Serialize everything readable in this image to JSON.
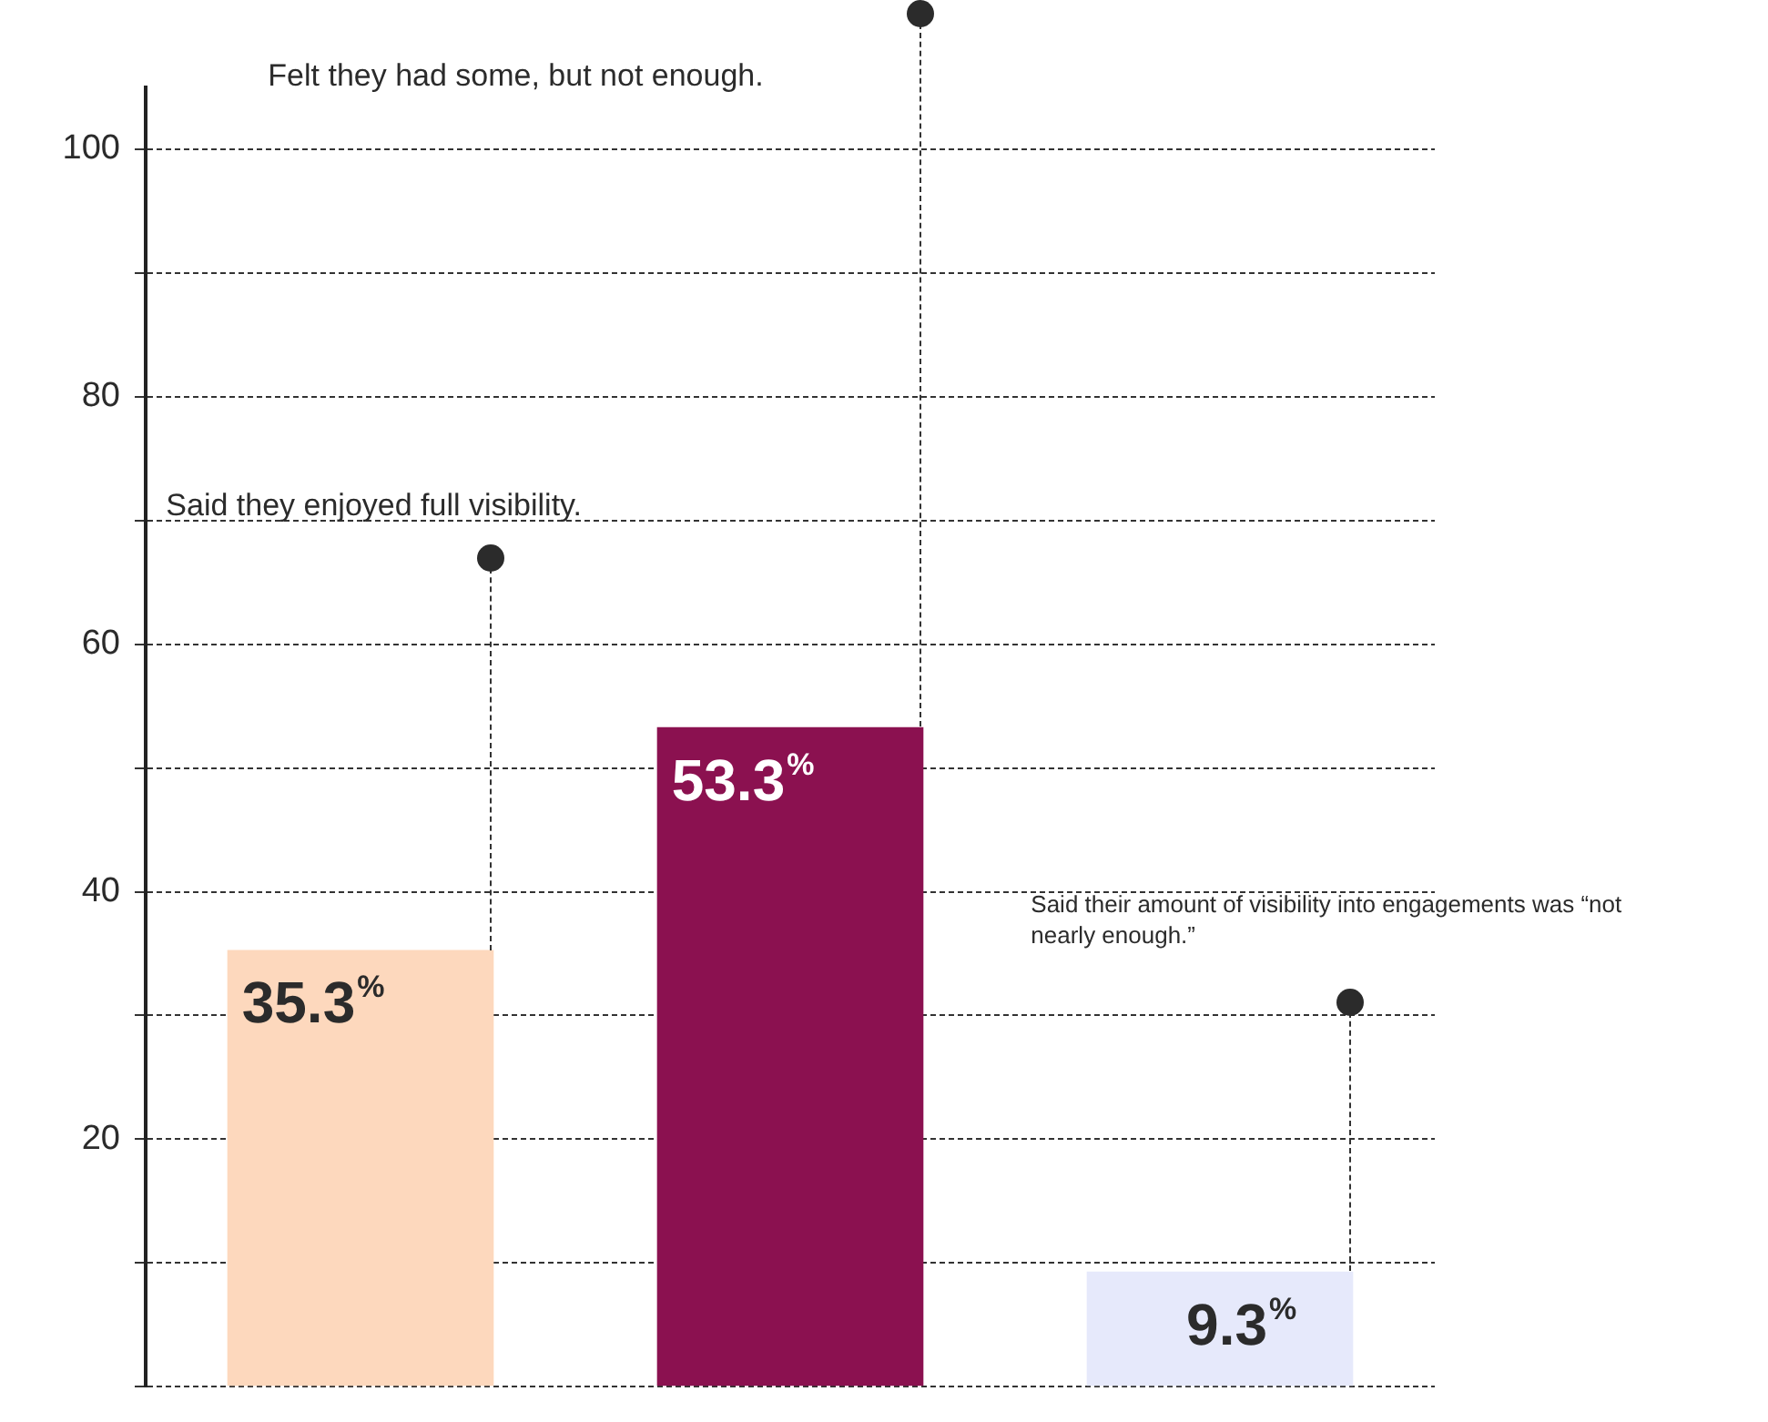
{
  "chart_data": {
    "type": "bar",
    "categories": [
      null,
      null,
      null
    ],
    "values": [
      35.3,
      53.3,
      9.3
    ],
    "colors": [
      "#fdd8bd",
      "#8b1150",
      "#e6e9fb"
    ],
    "value_labels": [
      "35.3%",
      "53.3%",
      "9.3%"
    ],
    "ylim": [
      0,
      105
    ],
    "yticks": [
      {
        "value": 0,
        "label": null
      },
      {
        "value": 10,
        "label": null
      },
      20,
      {
        "value": 30,
        "label": null
      },
      40,
      {
        "value": 50,
        "label": null
      },
      60,
      {
        "value": 70,
        "label": null
      },
      80,
      {
        "value": 90,
        "label": null
      },
      100
    ],
    "grid": "y",
    "annotations": [
      "Said they enjoyed full visibility.",
      "Felt they had some, but not enough.",
      "Said their amount of visibility into engagements was “not nearly enough.”"
    ]
  }
}
